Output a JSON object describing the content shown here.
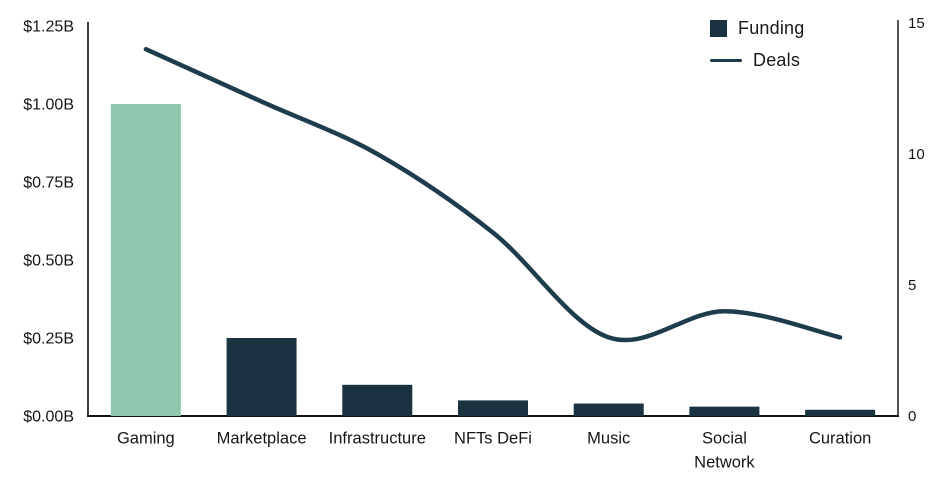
{
  "chart_data": {
    "type": "combo-bar-line",
    "title": "",
    "categories": [
      "Gaming",
      "Marketplace",
      "Infrastructure",
      "NFTs DeFi",
      "Music",
      "Social Network",
      "Curation"
    ],
    "category_label_lines": [
      [
        "Gaming"
      ],
      [
        "Marketplace"
      ],
      [
        "Infrastructure"
      ],
      [
        "NFTs DeFi"
      ],
      [
        "Music"
      ],
      [
        "Social",
        "Network"
      ],
      [
        "Curation"
      ]
    ],
    "series": [
      {
        "name": "Funding",
        "type": "bar",
        "axis": "left",
        "unit": "$B",
        "values": [
          1.0,
          0.25,
          0.1,
          0.05,
          0.04,
          0.03,
          0.02
        ]
      },
      {
        "name": "Deals",
        "type": "line",
        "axis": "right",
        "values": [
          14,
          12,
          10,
          7,
          3,
          4,
          3
        ]
      }
    ],
    "left_axis": {
      "min": 0,
      "max": 1.25,
      "tick_step": 0.25,
      "tick_labels": [
        "$0.00B",
        "$0.25B",
        "$0.50B",
        "$0.75B",
        "$1.00B",
        "$1.25B"
      ]
    },
    "right_axis": {
      "min": 0,
      "max": 15,
      "tick_step": 5,
      "tick_labels": [
        "0",
        "5",
        "10",
        "15"
      ]
    },
    "legend": {
      "position": "top-right",
      "items": [
        {
          "label": "Funding",
          "swatch": "square"
        },
        {
          "label": "Deals",
          "swatch": "line"
        }
      ]
    },
    "colors": {
      "highlight_bar": "#8fc7ae",
      "bar": "#1b3240",
      "line": "#1e3c4c",
      "left_axis_line": "#3c3c3c",
      "bottom_axis_line": "#111111",
      "right_axis_line": "#191919",
      "text": "#161616"
    },
    "highlight_category": "Gaming",
    "grid": false
  }
}
